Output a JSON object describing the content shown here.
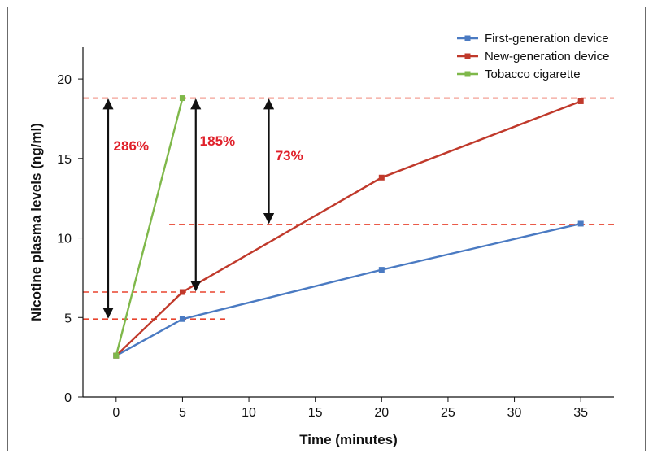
{
  "chart_data": {
    "type": "line",
    "xlabel": "Time (minutes)",
    "ylabel": "Nicotine plasma levels (ng/ml)",
    "xlim": [
      -2.5,
      37.5
    ],
    "ylim": [
      0,
      22
    ],
    "x_ticks": [
      "0",
      "5",
      "10",
      "15",
      "20",
      "25",
      "30",
      "35"
    ],
    "y_ticks": [
      "0",
      "5",
      "10",
      "15",
      "20"
    ],
    "grid": false,
    "legend_position": "top-right",
    "series": [
      {
        "name": "First-generation device",
        "color": "#4a7ac2",
        "points": [
          {
            "x": 0,
            "y": 2.6
          },
          {
            "x": 5,
            "y": 4.9
          },
          {
            "x": 20,
            "y": 8.0
          },
          {
            "x": 35,
            "y": 10.9
          }
        ]
      },
      {
        "name": "New-generation device",
        "color": "#c0392b",
        "points": [
          {
            "x": 0,
            "y": 2.6
          },
          {
            "x": 5,
            "y": 6.6
          },
          {
            "x": 20,
            "y": 13.8
          },
          {
            "x": 35,
            "y": 18.6
          }
        ]
      },
      {
        "name": "Tobacco cigarette",
        "color": "#7fb84a",
        "points": [
          {
            "x": 0,
            "y": 2.6
          },
          {
            "x": 5,
            "y": 18.8
          }
        ]
      }
    ],
    "reference_lines": [
      {
        "y": 18.8,
        "x_start": -2.5,
        "x_end": 37.5
      },
      {
        "y": 10.85,
        "x_start": 4,
        "x_end": 37.5
      },
      {
        "y": 6.6,
        "x_start": -2.5,
        "x_end": 8.5
      },
      {
        "y": 4.9,
        "x_start": -2.5,
        "x_end": 8.5
      }
    ],
    "reference_line_color": "#e8432e",
    "annotations": [
      {
        "label": "286%",
        "color": "#e0202a",
        "arrow_x": -0.6,
        "y_from": 4.9,
        "y_to": 18.8,
        "label_x": -0.2,
        "label_y": 15.5
      },
      {
        "label": "185%",
        "color": "#e0202a",
        "arrow_x": 6.0,
        "y_from": 6.6,
        "y_to": 18.8,
        "label_x": 6.3,
        "label_y": 15.8
      },
      {
        "label": "73%",
        "color": "#e0202a",
        "arrow_x": 11.5,
        "y_from": 10.85,
        "y_to": 18.8,
        "label_x": 12.0,
        "label_y": 14.9
      }
    ]
  }
}
